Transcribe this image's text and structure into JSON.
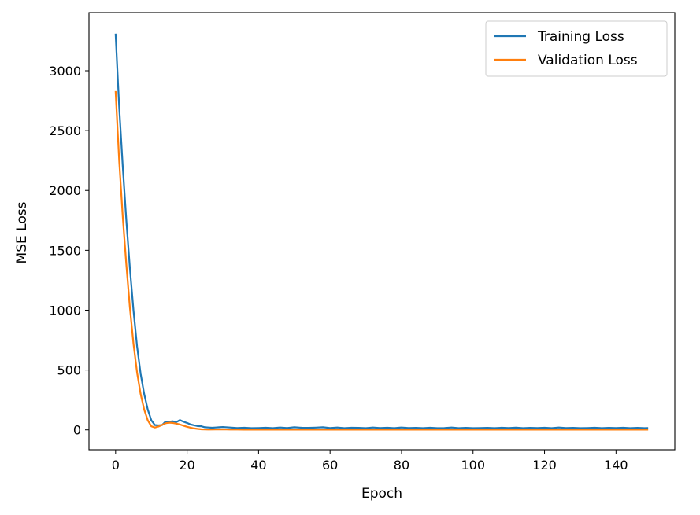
{
  "chart_data": {
    "type": "line",
    "xlabel": "Epoch",
    "ylabel": "MSE Loss",
    "xlim": [
      -7.45,
      156.45
    ],
    "ylim": [
      -166,
      3486
    ],
    "xticks": [
      0,
      20,
      40,
      60,
      80,
      100,
      120,
      140
    ],
    "yticks": [
      0,
      500,
      1000,
      1500,
      2000,
      2500,
      3000
    ],
    "grid": false,
    "legend_position": "top-right",
    "series": [
      {
        "name": "Training Loss",
        "color": "#1f77b4",
        "x": [
          0,
          1,
          2,
          3,
          4,
          5,
          6,
          7,
          8,
          9,
          10,
          11,
          12,
          13,
          14,
          15,
          16,
          17,
          18,
          19,
          20,
          21,
          22,
          23,
          24,
          25,
          26,
          27,
          28,
          29,
          30,
          32,
          34,
          36,
          38,
          40,
          42,
          44,
          46,
          48,
          50,
          52,
          54,
          56,
          58,
          60,
          62,
          64,
          66,
          68,
          70,
          72,
          74,
          76,
          78,
          80,
          82,
          84,
          86,
          88,
          90,
          92,
          94,
          96,
          98,
          100,
          102,
          104,
          106,
          108,
          110,
          112,
          114,
          116,
          118,
          120,
          122,
          124,
          126,
          128,
          130,
          132,
          134,
          136,
          138,
          140,
          142,
          144,
          146,
          148,
          149
        ],
        "values": [
          3310,
          2700,
          2200,
          1750,
          1350,
          1000,
          700,
          470,
          300,
          170,
          80,
          40,
          38,
          40,
          70,
          68,
          72,
          65,
          82,
          68,
          58,
          45,
          38,
          32,
          30,
          22,
          20,
          18,
          20,
          22,
          24,
          20,
          16,
          18,
          15,
          16,
          18,
          15,
          20,
          16,
          22,
          18,
          17,
          19,
          22,
          16,
          20,
          15,
          18,
          17,
          15,
          20,
          16,
          18,
          15,
          20,
          16,
          17,
          15,
          18,
          15,
          16,
          20,
          15,
          17,
          15,
          16,
          17,
          15,
          18,
          16,
          19,
          15,
          17,
          16,
          18,
          15,
          20,
          16,
          17,
          15,
          16,
          18,
          15,
          17,
          16,
          18,
          15,
          17,
          15,
          16
        ]
      },
      {
        "name": "Validation Loss",
        "color": "#ff7f0e",
        "x": [
          0,
          1,
          2,
          3,
          4,
          5,
          6,
          7,
          8,
          9,
          10,
          11,
          12,
          13,
          14,
          15,
          16,
          17,
          18,
          19,
          20,
          21,
          22,
          23,
          24,
          25,
          26,
          28,
          30,
          32,
          34,
          36,
          38,
          40,
          45,
          50,
          55,
          60,
          65,
          70,
          75,
          80,
          85,
          90,
          95,
          100,
          105,
          110,
          115,
          120,
          125,
          130,
          135,
          140,
          145,
          149
        ],
        "values": [
          2830,
          2250,
          1780,
          1380,
          1020,
          720,
          480,
          300,
          170,
          80,
          30,
          20,
          28,
          42,
          55,
          60,
          58,
          52,
          45,
          35,
          26,
          18,
          12,
          8,
          5,
          4,
          3,
          4,
          5,
          3,
          3,
          2,
          2,
          2,
          2,
          2,
          2,
          2,
          2,
          2,
          2,
          2,
          2,
          2,
          2,
          2,
          2,
          2,
          2,
          2,
          2,
          2,
          2,
          2,
          2,
          2
        ]
      }
    ]
  }
}
